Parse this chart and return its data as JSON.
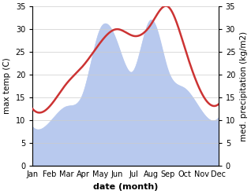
{
  "months": [
    "Jan",
    "Feb",
    "Mar",
    "Apr",
    "May",
    "Jun",
    "Jul",
    "Aug",
    "Sep",
    "Oct",
    "Nov",
    "Dec"
  ],
  "temp": [
    12.5,
    13.0,
    18.0,
    22.0,
    27.0,
    30.0,
    28.5,
    31.0,
    35.0,
    26.0,
    16.0,
    13.5
  ],
  "precip": [
    8.5,
    9.5,
    13.0,
    16.0,
    30.0,
    27.0,
    21.0,
    32.0,
    21.0,
    17.0,
    12.0,
    10.5
  ],
  "temp_color": "#cc3333",
  "precip_color": "#b8c9ee",
  "ylim": [
    0,
    35
  ],
  "yticks": [
    0,
    5,
    10,
    15,
    20,
    25,
    30,
    35
  ],
  "ylabel_left": "max temp (C)",
  "ylabel_right": "med. precipitation (kg/m2)",
  "xlabel": "date (month)",
  "background_color": "#ffffff",
  "grid_color": "#cccccc",
  "temp_linewidth": 1.8,
  "xlabel_fontsize": 8,
  "ylabel_fontsize": 7.5,
  "tick_fontsize": 7
}
